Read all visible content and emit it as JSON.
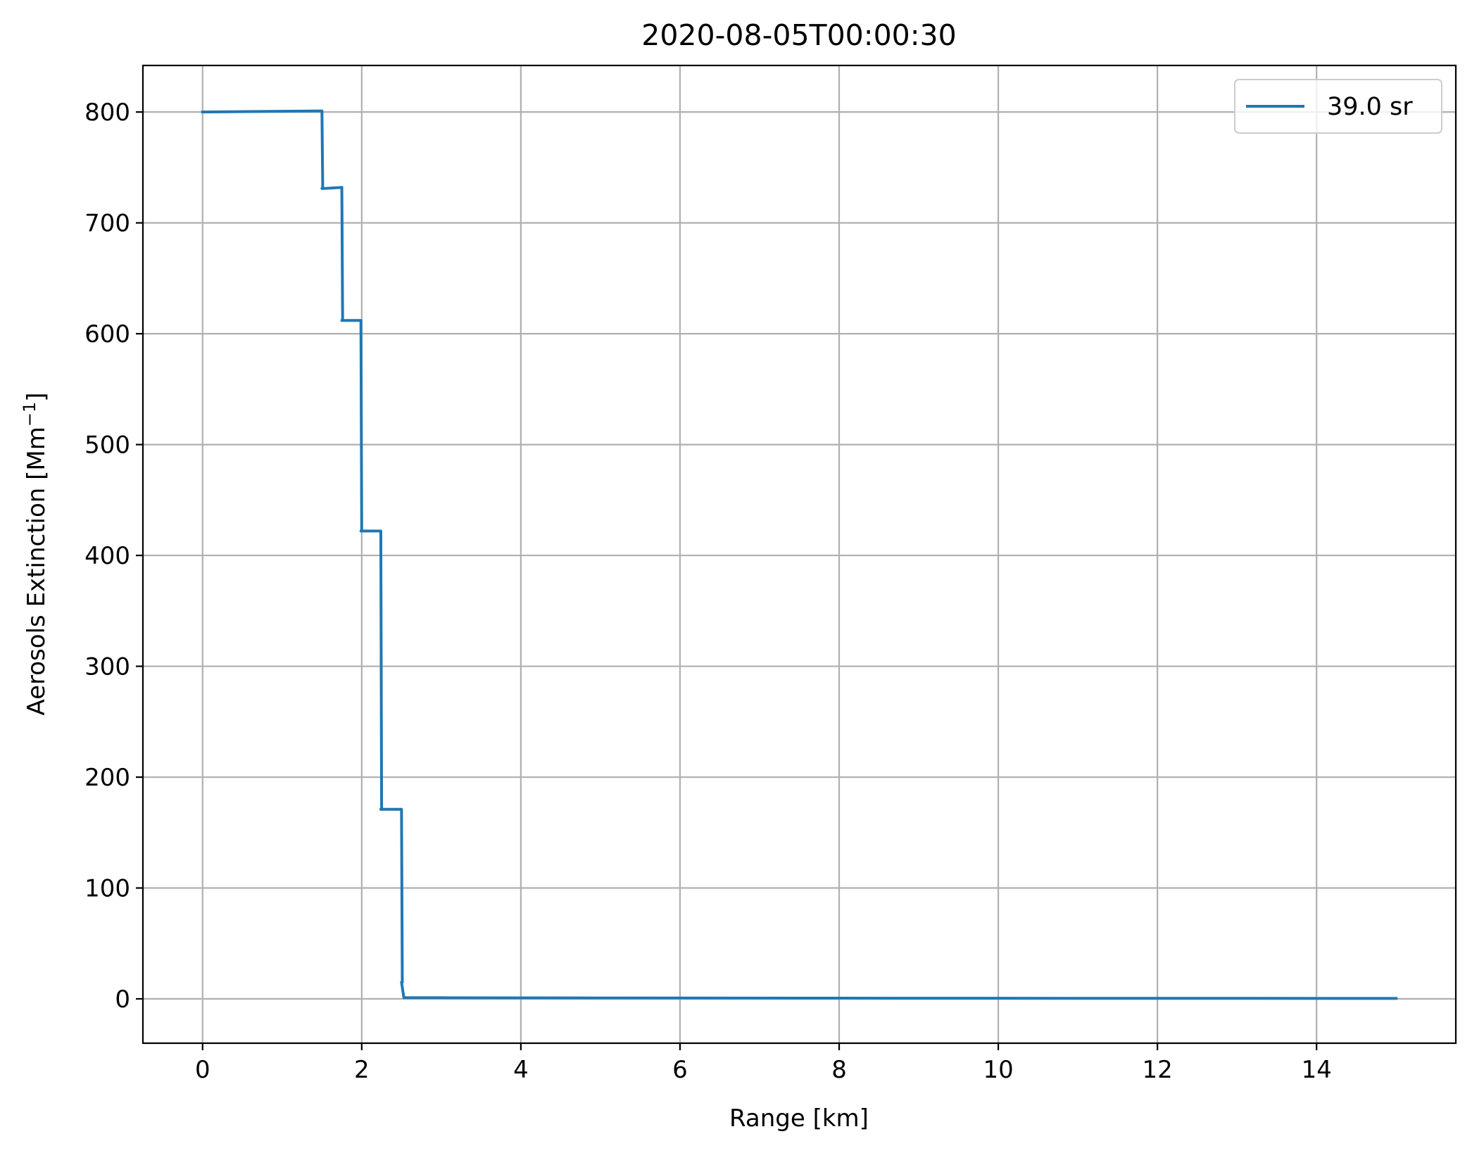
{
  "chart_data": {
    "type": "line",
    "title": "2020-08-05T00:00:30",
    "xlabel": "Range [km]",
    "ylabel_main": "Aerosols Extinction [Mm",
    "ylabel_sup": "−1",
    "ylabel_end": "]",
    "xlim": [
      -0.75,
      15.75
    ],
    "ylim": [
      -40,
      842
    ],
    "xticks": [
      0,
      2,
      4,
      6,
      8,
      10,
      12,
      14
    ],
    "yticks": [
      0,
      100,
      200,
      300,
      400,
      500,
      600,
      700,
      800
    ],
    "grid": true,
    "legend_position": "top-right",
    "series": [
      {
        "name": "39.0 sr",
        "color": "#1f77b4",
        "x": [
          0,
          1.5,
          1.51,
          1.5,
          1.52,
          1.75,
          1.76,
          1.75,
          1.77,
          1.99,
          2.0,
          1.99,
          2.02,
          2.24,
          2.25,
          2.24,
          2.27,
          2.5,
          2.51,
          2.5,
          2.53,
          3.0,
          5.0,
          8.0,
          11.0,
          15.0
        ],
        "y": [
          800,
          801,
          731,
          731,
          731,
          732,
          612,
          612,
          612,
          612,
          422,
          422,
          422,
          422,
          171,
          171,
          171,
          171,
          15,
          15,
          1,
          1,
          0.8,
          0.6,
          0.5,
          0.4
        ]
      }
    ]
  }
}
